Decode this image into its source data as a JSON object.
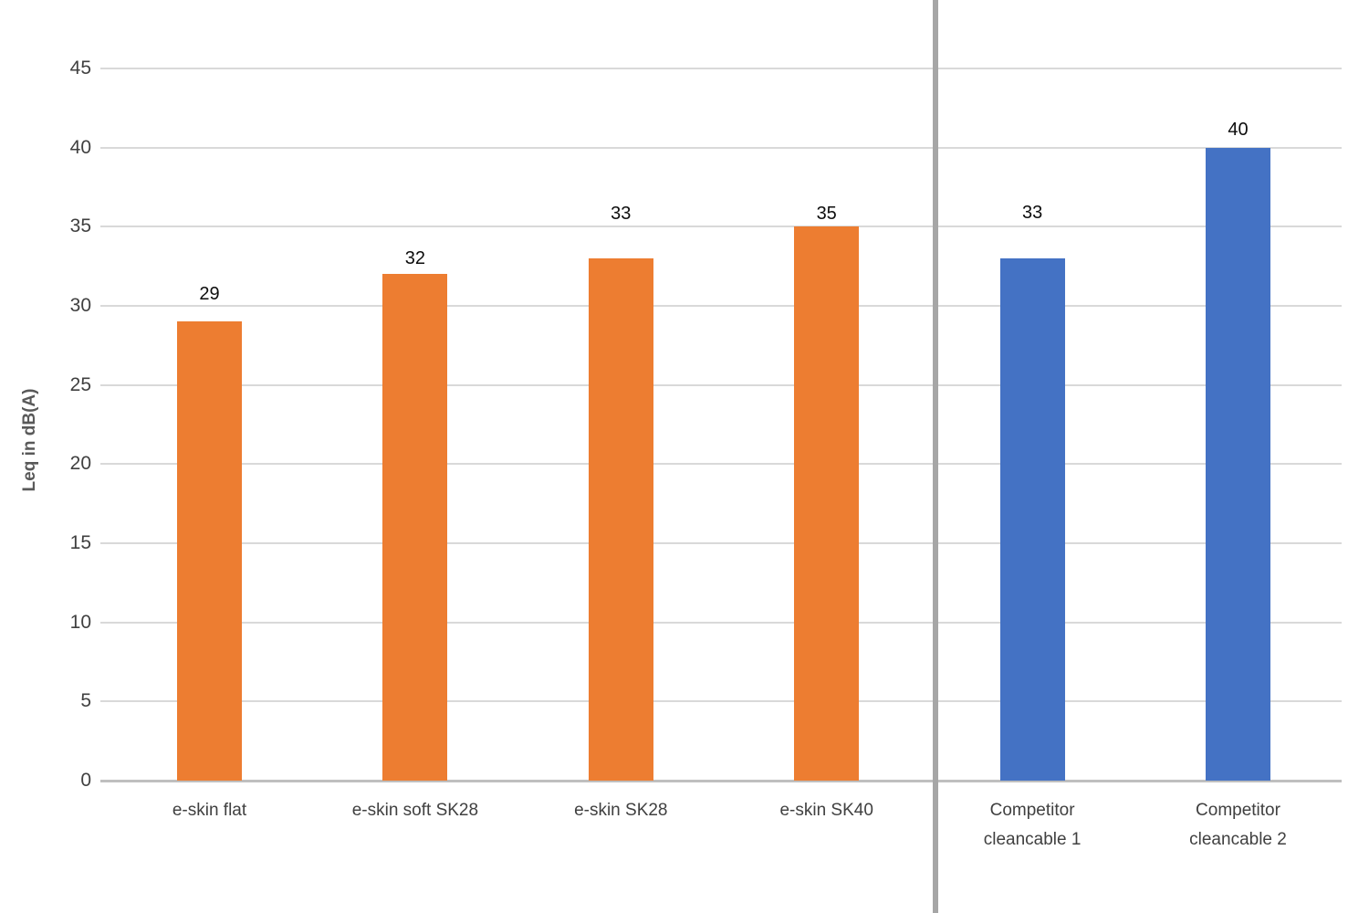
{
  "chart_data": {
    "type": "bar",
    "title": "",
    "xlabel": "",
    "ylabel": "Leq in dB(A)",
    "ylim": [
      0,
      45
    ],
    "yticks": [
      0,
      5,
      10,
      15,
      20,
      25,
      30,
      35,
      40,
      45
    ],
    "grid": true,
    "legend": "none",
    "categories": [
      "e-skin flat",
      "e-skin soft SK28",
      "e-skin SK28",
      "e-skin SK40",
      "Competitor cleancable 1",
      "Competitor cleancable 2"
    ],
    "category_label_lines": [
      [
        "e-skin flat"
      ],
      [
        "e-skin soft SK28"
      ],
      [
        "e-skin SK28"
      ],
      [
        "e-skin SK40"
      ],
      [
        "Competitor",
        "cleancable 1"
      ],
      [
        "Competitor",
        "cleancable 2"
      ]
    ],
    "values": [
      29,
      32,
      33,
      35,
      33,
      40
    ],
    "data_labels": [
      "29",
      "32",
      "33",
      "35",
      "33",
      "40"
    ],
    "series": [
      {
        "name": "e-skin",
        "color": "#ED7D31",
        "indices": [
          0,
          1,
          2,
          3
        ]
      },
      {
        "name": "Competitor cleancable",
        "color": "#4472C4",
        "indices": [
          4,
          5
        ]
      }
    ],
    "bar_colors": [
      "#ED7D31",
      "#ED7D31",
      "#ED7D31",
      "#ED7D31",
      "#4472C4",
      "#4472C4"
    ],
    "group_divider": true,
    "colors": {
      "eskin_bar": "#ED7D31",
      "competitor_bar": "#4472C4",
      "gridline": "#D9D9D9",
      "baseline": "#BFBFBF",
      "divider": "#A6A6A6",
      "tick_text": "#404040",
      "axis_title_text": "#595959",
      "data_label_text": "#0d0d0d",
      "background": "#FFFFFF"
    }
  }
}
